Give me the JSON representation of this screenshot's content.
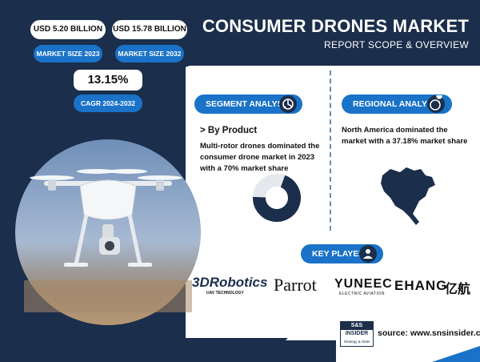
{
  "header": {
    "title": "CONSUMER DRONES MARKET",
    "subtitle": "REPORT SCOPE & OVERVIEW"
  },
  "stats": {
    "market_size_2023_value": "USD 5.20 BILLION",
    "market_size_2023_label": "MARKET SIZE 2023",
    "market_size_2032_value": "USD 15.78 BILLION",
    "market_size_2032_label": "MARKET SIZE 2032",
    "cagr_value": "13.15%",
    "cagr_label": "CAGR 2024-2032"
  },
  "segment": {
    "heading": "SEGMENT ANALYSIS",
    "subheading": "> By Product",
    "text": "Multi-rotor drones dominated the consumer drone market in 2023 with a 70% market share",
    "share_fraction": 0.7
  },
  "regional": {
    "heading": "REGIONAL ANALYSIS",
    "text": "North America dominated the market with a 37.18% market share"
  },
  "key_players": {
    "heading": "KEY PLAYER'S",
    "logos": [
      "3DRobotics",
      "UAV TECHNOLOGY",
      "Parrot",
      "YUNEEC",
      "ELECTRIC AVIATION",
      "EHANG",
      "亿航"
    ]
  },
  "footer": {
    "logo_top": "S&S",
    "logo_mid": "INSIDER",
    "logo_bottom": "Strategy & Stats",
    "source": "source: www.snsinsider.com"
  },
  "colors": {
    "navy": "#1b2e4b",
    "accent_blue": "#1a73c8"
  },
  "icons": [
    "segment-icon",
    "globe-pin-icon",
    "person-icon"
  ]
}
